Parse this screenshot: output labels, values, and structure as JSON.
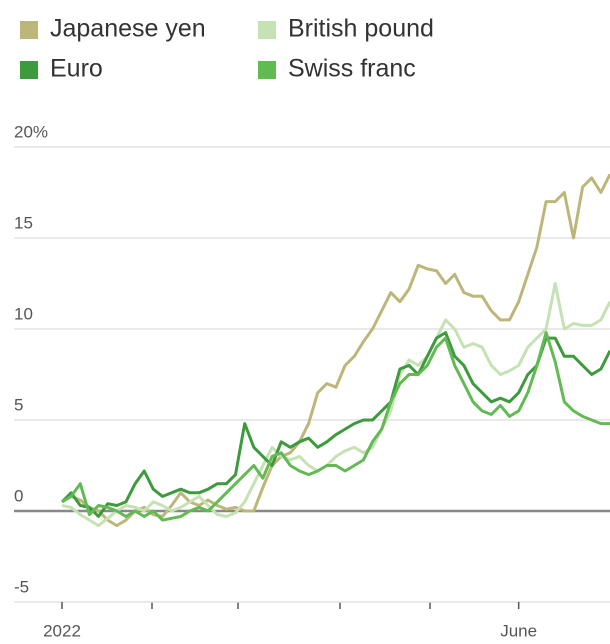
{
  "chart_data": {
    "type": "line",
    "categories": [
      "2022",
      null,
      null,
      null,
      null,
      null,
      null,
      null,
      null,
      null,
      null,
      null,
      null,
      null,
      null,
      null,
      null,
      null,
      null,
      null,
      null,
      null,
      null,
      null,
      null,
      null,
      null,
      null,
      null,
      null,
      null,
      null,
      null,
      null,
      null,
      null,
      null,
      null,
      null,
      null,
      null,
      null,
      null,
      null,
      null,
      null,
      null,
      null,
      null,
      null,
      "June",
      null,
      null,
      null,
      null,
      null,
      null,
      null,
      null,
      null,
      null
    ],
    "series": [
      {
        "name": "Japanese yen",
        "color": "#bdb67a",
        "values": [
          0.5,
          0.8,
          0.6,
          0.2,
          0,
          -0.5,
          -0.8,
          -0.5,
          0,
          0.2,
          -0.2,
          -0.3,
          0.3,
          1,
          0.5,
          0.3,
          0.6,
          0.3,
          0.1,
          0.2,
          0,
          0,
          1.3,
          2.5,
          3,
          3.2,
          3.8,
          4.8,
          6.5,
          7,
          6.8,
          8,
          8.5,
          9.3,
          10,
          11,
          12,
          11.5,
          12.2,
          13.5,
          13.3,
          13.2,
          12.5,
          13,
          12,
          11.8,
          11.8,
          11,
          10.5,
          10.5,
          11.5,
          13,
          14.5,
          17,
          17,
          17.5,
          15,
          17.8,
          18.3,
          17.5,
          18.5
        ]
      },
      {
        "name": "British pound",
        "color": "#c4e2b3",
        "values": [
          0.3,
          0.2,
          -0.2,
          -0.5,
          -0.8,
          -0.4,
          0,
          0.3,
          0.2,
          0,
          0.5,
          0.3,
          0,
          0.2,
          0.5,
          0.8,
          0.3,
          -0.2,
          -0.3,
          -0.1,
          0.5,
          1.5,
          2.5,
          3.5,
          3,
          2.8,
          3,
          2.5,
          2.2,
          2.5,
          3,
          3.3,
          3.5,
          3.2,
          3.5,
          4.5,
          5.5,
          7.5,
          8.3,
          8,
          8.5,
          9.5,
          10.5,
          10,
          9,
          9.2,
          9,
          8,
          7.5,
          7.7,
          8,
          9,
          9.5,
          10,
          12.5,
          10,
          10.3,
          10.2,
          10.2,
          10.5,
          11.5
        ]
      },
      {
        "name": "Euro",
        "color": "#3d9a3d",
        "values": [
          0.5,
          1,
          0.3,
          0.2,
          -0.3,
          0.4,
          0.3,
          0.5,
          1.5,
          2.2,
          1.2,
          0.8,
          1,
          1.2,
          1,
          1,
          1.2,
          1.5,
          1.5,
          2,
          4.8,
          3.5,
          3,
          2.5,
          3.8,
          3.5,
          3.8,
          4,
          3.5,
          3.8,
          4.2,
          4.5,
          4.8,
          5,
          5,
          5.5,
          6,
          7.8,
          8,
          7.5,
          8.5,
          9.5,
          9.8,
          8.5,
          8,
          7,
          6.5,
          6,
          6.2,
          6,
          6.5,
          7.5,
          8,
          9.5,
          9.5,
          8.5,
          8.5,
          8,
          7.5,
          7.8,
          8.8
        ]
      },
      {
        "name": "Swiss franc",
        "color": "#62ba52",
        "values": [
          0.5,
          0.8,
          1.5,
          -0.2,
          0.3,
          0.2,
          0,
          -0.3,
          0,
          -0.3,
          0,
          -0.5,
          -0.4,
          -0.3,
          0,
          0.2,
          0,
          0.5,
          1,
          1.5,
          2,
          2.5,
          1.8,
          3,
          3.2,
          2.5,
          2.2,
          2,
          2.2,
          2.5,
          2.5,
          2.2,
          2.5,
          2.8,
          3.8,
          4.5,
          6,
          7,
          7.5,
          7.5,
          8,
          9,
          9.5,
          8,
          7,
          6,
          5.5,
          5.3,
          5.8,
          5.2,
          5.5,
          6.5,
          8,
          9.8,
          8.2,
          6,
          5.5,
          5.2,
          5,
          4.8,
          4.8
        ]
      }
    ],
    "ylim": [
      -5,
      20
    ],
    "yticks": [
      {
        "value": 20,
        "label": "20%"
      },
      15,
      10,
      5,
      0,
      -5
    ],
    "grid": true
  }
}
